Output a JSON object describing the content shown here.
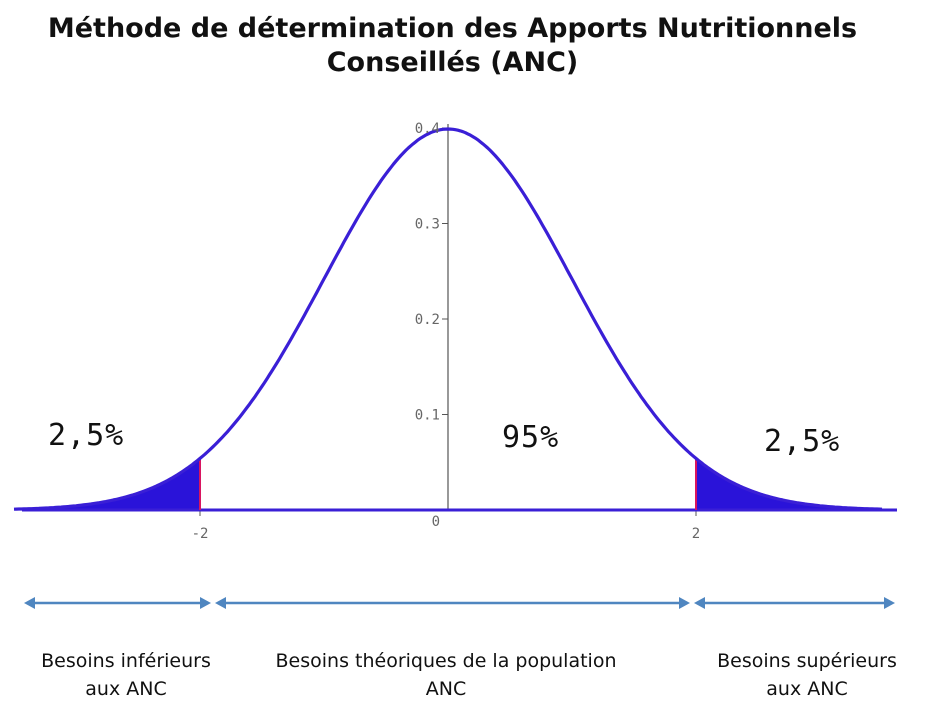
{
  "title": {
    "line1": "Méthode de détermination des Apports Nutritionnels",
    "line2": "Conseillés (ANC)"
  },
  "chart_data": {
    "type": "area",
    "curve": "standard normal density",
    "x_range": [
      -3.5,
      3.5
    ],
    "ylim": [
      0,
      0.4
    ],
    "y_ticks": [
      "0",
      "0.1",
      "0.2",
      "0.3",
      "0.4"
    ],
    "x_ticks": [
      {
        "value": -2,
        "label": "-2"
      },
      {
        "value": 2,
        "label": "2"
      }
    ],
    "shaded_tails": [
      {
        "from": -3.5,
        "to": -2
      },
      {
        "from": 2,
        "to": 3.5
      }
    ],
    "annotations": {
      "left_tail": "2,5%",
      "center": "95%",
      "right_tail": "2,5%"
    },
    "colors": {
      "curve": "#3a1fd6",
      "fill": "#2a13d9",
      "marker": "#d91460",
      "arrow": "#4f86c0"
    }
  },
  "ranges": {
    "lower": {
      "line1": "Besoins inférieurs",
      "line2": "aux ANC"
    },
    "middle": {
      "line1": "Besoins théoriques de la population",
      "line2": "ANC"
    },
    "upper": {
      "line1": "Besoins supérieurs",
      "line2": "aux ANC"
    }
  }
}
